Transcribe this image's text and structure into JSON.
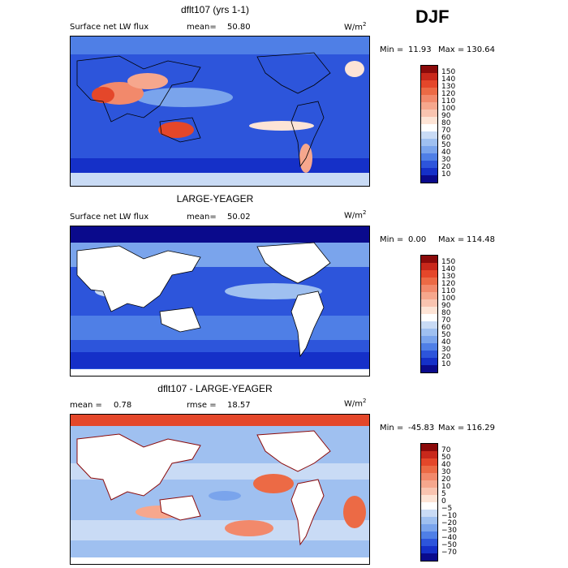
{
  "season": "DJF",
  "panels": [
    {
      "id": "model",
      "title": "dflt107 (yrs 1-1)",
      "field": "Surface net LW flux",
      "mean_label": "mean=",
      "mean_value": "50.80",
      "units": "W/m",
      "units_sup": "2",
      "min_label": "Min =",
      "min_value": "11.93",
      "max_label": "Max =",
      "max_value": "130.64",
      "land_masked": false,
      "colorbar": {
        "labels": [
          "150",
          "140",
          "130",
          "120",
          "110",
          "100",
          "90",
          "80",
          "70",
          "60",
          "50",
          "40",
          "30",
          "20",
          "10"
        ],
        "colors": [
          "#8b0a0a",
          "#c8281b",
          "#e4472a",
          "#ec6a45",
          "#f2896b",
          "#f6a78d",
          "#f9c4b0",
          "#fde4d6",
          "#ffffff",
          "#c9dbf5",
          "#9fc0f0",
          "#7aa4ec",
          "#4f7fe6",
          "#2d55db",
          "#1530c8",
          "#0a0a8c"
        ]
      }
    },
    {
      "id": "obs",
      "title": "LARGE-YEAGER",
      "field": "Surface net LW flux",
      "mean_label": "mean=",
      "mean_value": "50.02",
      "units": "W/m",
      "units_sup": "2",
      "min_label": "Min =",
      "min_value": "0.00",
      "max_label": "Max =",
      "max_value": "114.48",
      "land_masked": true,
      "colorbar": {
        "labels": [
          "150",
          "140",
          "130",
          "120",
          "110",
          "100",
          "90",
          "80",
          "70",
          "60",
          "50",
          "40",
          "30",
          "20",
          "10"
        ],
        "colors": [
          "#8b0a0a",
          "#c8281b",
          "#e4472a",
          "#ec6a45",
          "#f2896b",
          "#f6a78d",
          "#f9c4b0",
          "#fde4d6",
          "#ffffff",
          "#c9dbf5",
          "#9fc0f0",
          "#7aa4ec",
          "#4f7fe6",
          "#2d55db",
          "#1530c8",
          "#0a0a8c"
        ]
      }
    },
    {
      "id": "diff",
      "title": "dflt107 - LARGE-YEAGER",
      "mean_label": "mean =",
      "mean_value": "0.78",
      "rmse_label": "rmse =",
      "rmse_value": "18.57",
      "units": "W/m",
      "units_sup": "2",
      "min_label": "Min =",
      "min_value": "-45.83",
      "max_label": "Max =",
      "max_value": "116.29",
      "land_masked": true,
      "colorbar": {
        "labels": [
          "70",
          "50",
          "40",
          "30",
          "20",
          "10",
          "5",
          "0",
          "−5",
          "−10",
          "−20",
          "−30",
          "−40",
          "−50",
          "−70"
        ],
        "colors": [
          "#8b0a0a",
          "#c8281b",
          "#e4472a",
          "#ec6a45",
          "#f2896b",
          "#f6a78d",
          "#f9c4b0",
          "#fde4d6",
          "#ffffff",
          "#c9dbf5",
          "#9fc0f0",
          "#7aa4ec",
          "#4f7fe6",
          "#2d55db",
          "#1530c8",
          "#0a0a8c"
        ]
      }
    }
  ]
}
